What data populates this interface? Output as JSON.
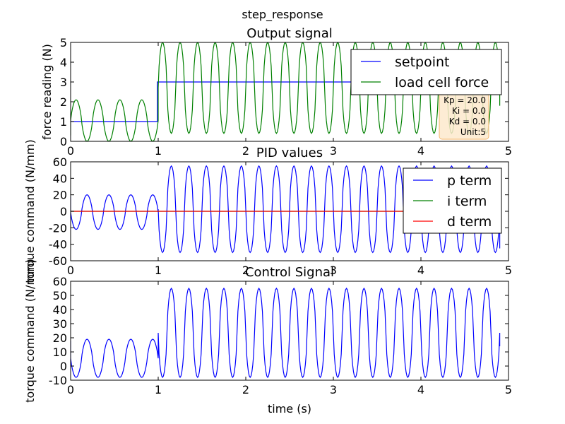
{
  "figure": {
    "suptitle": "step_response",
    "xlabel": "time (s)"
  },
  "colors": {
    "setpoint": "#0000ff",
    "force": "#008000",
    "p_term": "#0000ff",
    "i_term": "#008000",
    "d_term": "#ff0000",
    "control": "#0000ff",
    "annotation_face": "#fde9cc",
    "annotation_edge": "#f5b66a"
  },
  "chart_data": [
    {
      "type": "line",
      "title": "Output signal",
      "xlabel": "",
      "ylabel": "force reading (N)",
      "xlim": [
        0,
        5
      ],
      "ylim": [
        0,
        5
      ],
      "xticks": [
        0,
        1,
        2,
        3,
        4,
        5
      ],
      "yticks": [
        0,
        1,
        2,
        3,
        4,
        5
      ],
      "grid": false,
      "legend_loc": "upper right",
      "annotation": {
        "location": "lower right",
        "lines": [
          "Kp = 20.0",
          "Ki = 0.0",
          "Kd = 0.0",
          "Unit:5"
        ]
      },
      "series": [
        {
          "name": "setpoint",
          "color_key": "setpoint",
          "x": [
            0,
            0.99,
            0.99,
            4.9
          ],
          "y": [
            1,
            1,
            3,
            3
          ]
        },
        {
          "name": "load cell force",
          "color_key": "force",
          "generator": {
            "segments": [
              {
                "t0": 0.0,
                "t1": 1.0,
                "period": 0.25,
                "min": 0.0,
                "max": 2.1,
                "sharp": 1.3
              },
              {
                "t0": 1.0,
                "t1": 4.9,
                "period": 0.2,
                "min": 0.4,
                "max": 5.0,
                "sharp": 1.6
              }
            ],
            "start": {
              "x": 0,
              "y": 0.3
            },
            "end": {
              "x": 4.9,
              "y": 1.8
            },
            "step": 0.01
          }
        }
      ]
    },
    {
      "type": "line",
      "title": "PID values",
      "xlabel": "",
      "ylabel": "torque command (N/mm)",
      "xlim": [
        0,
        5
      ],
      "ylim": [
        -60,
        60
      ],
      "xticks": [
        0,
        1,
        2,
        3,
        4,
        5
      ],
      "yticks": [
        -60,
        -40,
        -20,
        0,
        20,
        40,
        60
      ],
      "grid": false,
      "legend_loc": "upper right",
      "series": [
        {
          "name": "p term",
          "color_key": "p_term",
          "generator": {
            "segments": [
              {
                "t0": 0.0,
                "t1": 1.0,
                "period": 0.25,
                "min": -22,
                "max": 20,
                "sharp": 1.3,
                "invert": true
              },
              {
                "t0": 1.0,
                "t1": 4.9,
                "period": 0.2,
                "min": -50,
                "max": 55,
                "sharp": 1.6,
                "invert": true
              }
            ],
            "start": {
              "x": 0,
              "y": 18
            },
            "end": {
              "x": 4.9,
              "y": -45
            },
            "step": 0.01
          }
        },
        {
          "name": "i term",
          "color_key": "i_term",
          "x": [
            0,
            4.9
          ],
          "y": [
            0,
            0
          ]
        },
        {
          "name": "d term",
          "color_key": "d_term",
          "x": [
            0,
            4.9
          ],
          "y": [
            0,
            0
          ]
        }
      ]
    },
    {
      "type": "line",
      "title": "Control Signal",
      "xlabel": "time (s)",
      "ylabel": "torque command (N/mm)",
      "xlim": [
        0,
        5
      ],
      "ylim": [
        -10,
        60
      ],
      "xticks": [
        0,
        1,
        2,
        3,
        4,
        5
      ],
      "yticks": [
        -10,
        0,
        10,
        20,
        30,
        40,
        50,
        60
      ],
      "grid": false,
      "series": [
        {
          "name": "",
          "color_key": "control",
          "generator": {
            "segments": [
              {
                "t0": 0.0,
                "t1": 1.0,
                "period": 0.25,
                "min": -8,
                "max": 19,
                "sharp": 1.3,
                "invert": true,
                "clip_min": -8
              },
              {
                "t0": 1.0,
                "t1": 4.9,
                "period": 0.2,
                "min": -8,
                "max": 55,
                "sharp": 1.6,
                "invert": true,
                "clip_min": -8
              }
            ],
            "start": {
              "x": 0,
              "y": 18
            },
            "end": {
              "x": 4.9,
              "y": 14
            },
            "step": 0.01
          }
        }
      ]
    }
  ]
}
